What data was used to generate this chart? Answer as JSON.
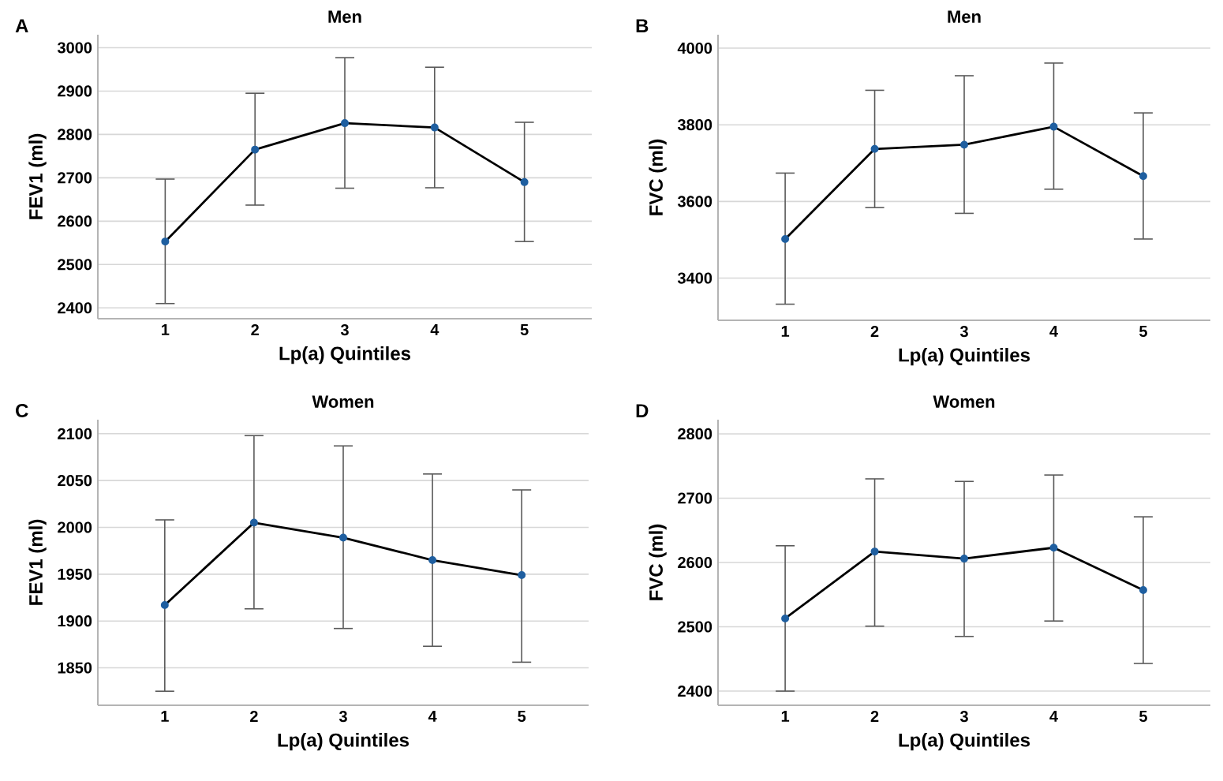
{
  "chart_data": [
    {
      "type": "line",
      "title": "Men",
      "xlabel": "Lp(a) Quintiles",
      "ylabel": "FEV1 (ml)",
      "annotations": [
        "A"
      ],
      "categories": [
        "1",
        "2",
        "3",
        "4",
        "5"
      ],
      "color": "#000000",
      "marker": "circle",
      "grid": "y",
      "values": [
        2553,
        2765,
        2826,
        2816,
        2690
      ],
      "errors": [
        [
          2410,
          2697
        ],
        [
          2637,
          2895
        ],
        [
          2676,
          2977
        ],
        [
          2677,
          2955
        ],
        [
          2553,
          2828
        ]
      ],
      "ylim": [
        2375,
        3030
      ],
      "yticks": [
        2400,
        2500,
        2600,
        2700,
        2800,
        2900,
        3000
      ]
    },
    {
      "type": "line",
      "title": "Men",
      "xlabel": "Lp(a) Quintiles",
      "ylabel": "FVC (ml)",
      "annotations": [
        "B"
      ],
      "categories": [
        "1",
        "2",
        "3",
        "4",
        "5"
      ],
      "color": "#000000",
      "marker": "circle",
      "grid": "y",
      "values": [
        3502,
        3737,
        3748,
        3795,
        3666
      ],
      "errors": [
        [
          3332,
          3674
        ],
        [
          3584,
          3890
        ],
        [
          3569,
          3928
        ],
        [
          3632,
          3961
        ],
        [
          3502,
          3831
        ]
      ],
      "ylim": [
        3290,
        4035
      ],
      "yticks": [
        3400,
        3600,
        3800,
        4000
      ]
    },
    {
      "type": "line",
      "title": "Women",
      "xlabel": "Lp(a) Quintiles",
      "ylabel": "FEV1 (ml)",
      "annotations": [
        "C"
      ],
      "categories": [
        "1",
        "2",
        "3",
        "4",
        "5"
      ],
      "color": "#000000",
      "marker": "circle",
      "grid": "y",
      "values": [
        1917,
        2005,
        1989,
        1965,
        1949
      ],
      "errors": [
        [
          1825,
          2008
        ],
        [
          1913,
          2098
        ],
        [
          1892,
          2087
        ],
        [
          1873,
          2057
        ],
        [
          1856,
          2040
        ]
      ],
      "ylim": [
        1810,
        2115
      ],
      "yticks": [
        1850,
        1900,
        1950,
        2000,
        2050,
        2100
      ]
    },
    {
      "type": "line",
      "title": "Women",
      "xlabel": "Lp(a) Quintiles",
      "ylabel": "FVC (ml)",
      "annotations": [
        "D"
      ],
      "categories": [
        "1",
        "2",
        "3",
        "4",
        "5"
      ],
      "color": "#000000",
      "marker": "circle",
      "grid": "y",
      "values": [
        2513,
        2617,
        2606,
        2623,
        2557
      ],
      "errors": [
        [
          2400,
          2626
        ],
        [
          2501,
          2730
        ],
        [
          2485,
          2726
        ],
        [
          2509,
          2736
        ],
        [
          2443,
          2671
        ]
      ],
      "ylim": [
        2378,
        2822
      ],
      "yticks": [
        2400,
        2500,
        2600,
        2700,
        2800
      ]
    }
  ]
}
